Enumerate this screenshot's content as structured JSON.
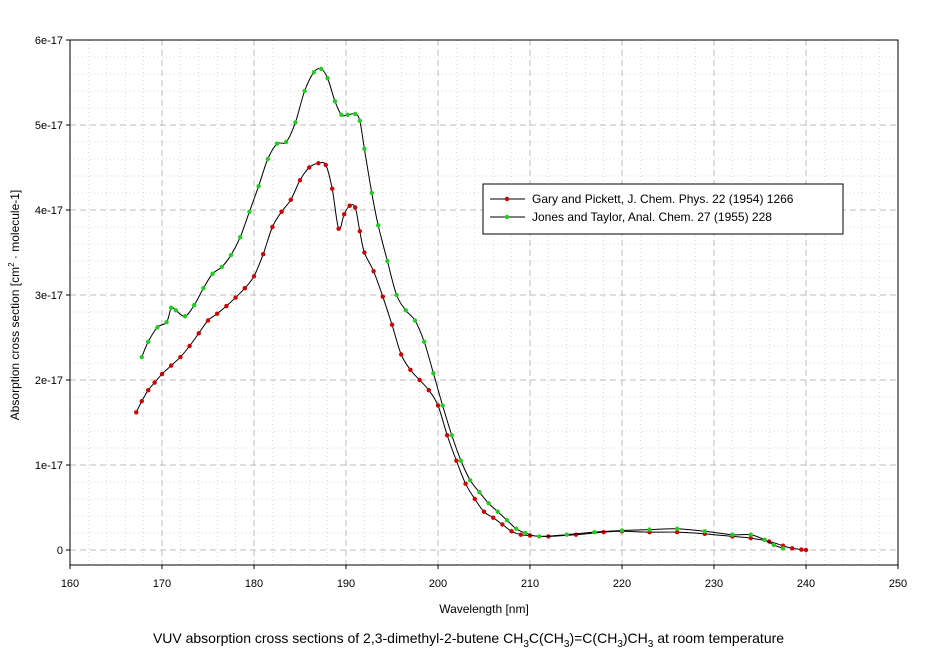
{
  "chart_data": {
    "type": "line",
    "xlabel": "Wavelength [nm]",
    "ylabel_parts": {
      "before": "Absorption cross section [cm",
      "sup": "2",
      "after": " · molecule-1]"
    },
    "xlim": [
      160,
      250
    ],
    "ylim": [
      0,
      6e-17
    ],
    "x_ticks": [
      {
        "value": 160,
        "label": "160"
      },
      {
        "value": 170,
        "label": "170"
      },
      {
        "value": 180,
        "label": "180"
      },
      {
        "value": 190,
        "label": "190"
      },
      {
        "value": 200,
        "label": "200"
      },
      {
        "value": 210,
        "label": "210"
      },
      {
        "value": 220,
        "label": "220"
      },
      {
        "value": 230,
        "label": "230"
      },
      {
        "value": 240,
        "label": "240"
      },
      {
        "value": 250,
        "label": "250"
      }
    ],
    "y_ticks": [
      {
        "value": 0,
        "label": "0"
      },
      {
        "value": 1e-17,
        "label": "1e-17"
      },
      {
        "value": 2e-17,
        "label": "2e-17"
      },
      {
        "value": 3e-17,
        "label": "3e-17"
      },
      {
        "value": 4e-17,
        "label": "4e-17"
      },
      {
        "value": 5e-17,
        "label": "5e-17"
      },
      {
        "value": 6e-17,
        "label": "6e-17"
      }
    ],
    "grid": true,
    "legend_position": "right",
    "series": [
      {
        "name": "Gary and Pickett, J. Chem. Phys. 22 (1954) 1266",
        "color": "#cc0000",
        "x": [
          167.2,
          167.8,
          168.5,
          169.2,
          170.0,
          171.0,
          172.0,
          173.0,
          174.0,
          175.0,
          176.0,
          177.0,
          178.0,
          179.0,
          180.0,
          181.0,
          182.0,
          183.0,
          184.0,
          185.0,
          186.0,
          187.0,
          187.8,
          188.5,
          189.2,
          189.8,
          190.4,
          191.0,
          191.5,
          192.0,
          193.0,
          194.0,
          195.0,
          196.0,
          197.0,
          198.0,
          199.0,
          200.0,
          201.0,
          202.0,
          203.0,
          204.0,
          205.0,
          206.0,
          207.0,
          208.0,
          209.0,
          210.0,
          212.0,
          215.0,
          218.0,
          220.0,
          223.0,
          226.0,
          229.0,
          232.0,
          234.0,
          236.0,
          237.5,
          238.5,
          239.5,
          240.0
        ],
        "y": [
          1.62e-17,
          1.75e-17,
          1.88e-17,
          1.97e-17,
          2.07e-17,
          2.17e-17,
          2.27e-17,
          2.4e-17,
          2.55e-17,
          2.7e-17,
          2.78e-17,
          2.87e-17,
          2.97e-17,
          3.08e-17,
          3.22e-17,
          3.48e-17,
          3.8e-17,
          3.98e-17,
          4.12e-17,
          4.35e-17,
          4.5e-17,
          4.55e-17,
          4.53e-17,
          4.25e-17,
          3.78e-17,
          3.95e-17,
          4.05e-17,
          4.03e-17,
          3.75e-17,
          3.5e-17,
          3.28e-17,
          2.98e-17,
          2.65e-17,
          2.3e-17,
          2.12e-17,
          2e-17,
          1.88e-17,
          1.7e-17,
          1.35e-17,
          1.05e-17,
          7.8e-18,
          6e-18,
          4.5e-18,
          3.8e-18,
          3e-18,
          2.2e-18,
          1.8e-18,
          1.7e-18,
          1.6e-18,
          1.8e-18,
          2.1e-18,
          2.2e-18,
          2.1e-18,
          2.1e-18,
          1.9e-18,
          1.6e-18,
          1.4e-18,
          1e-18,
          5e-19,
          2e-19,
          5e-20,
          0.0
        ]
      },
      {
        "name": "Jones and Taylor, Anal. Chem. 27 (1955) 228",
        "color": "#22cc22",
        "x": [
          167.8,
          168.5,
          169.5,
          170.5,
          171.0,
          171.5,
          172.5,
          173.5,
          174.5,
          175.5,
          176.5,
          177.5,
          178.5,
          179.5,
          180.5,
          181.5,
          182.5,
          183.5,
          184.5,
          185.5,
          186.5,
          187.3,
          188.0,
          188.8,
          189.5,
          190.2,
          191.0,
          191.5,
          192.0,
          192.8,
          193.5,
          194.5,
          195.5,
          196.5,
          197.5,
          198.5,
          199.5,
          200.5,
          201.5,
          202.5,
          203.5,
          204.5,
          205.5,
          206.5,
          207.5,
          208.5,
          209.5,
          211.0,
          214.0,
          217.0,
          220.0,
          223.0,
          226.0,
          229.0,
          232.0,
          234.0,
          235.5,
          236.5,
          237.5
        ],
        "y": [
          2.27e-17,
          2.45e-17,
          2.62e-17,
          2.68e-17,
          2.85e-17,
          2.82e-17,
          2.75e-17,
          2.88e-17,
          3.08e-17,
          3.25e-17,
          3.33e-17,
          3.47e-17,
          3.68e-17,
          3.98e-17,
          4.28e-17,
          4.6e-17,
          4.78e-17,
          4.8e-17,
          5.03e-17,
          5.4e-17,
          5.62e-17,
          5.66e-17,
          5.55e-17,
          5.28e-17,
          5.12e-17,
          5.12e-17,
          5.13e-17,
          5.05e-17,
          4.72e-17,
          4.2e-17,
          3.82e-17,
          3.4e-17,
          3e-17,
          2.82e-17,
          2.7e-17,
          2.45e-17,
          2.08e-17,
          1.7e-17,
          1.35e-17,
          1.05e-17,
          8.2e-18,
          6.8e-18,
          5.5e-18,
          4.5e-18,
          3.5e-18,
          2.5e-18,
          2e-18,
          1.6e-18,
          1.8e-18,
          2.1e-18,
          2.3e-18,
          2.4e-18,
          2.5e-18,
          2.2e-18,
          1.8e-18,
          1.8e-18,
          1.2e-18,
          6e-19,
          2e-19
        ]
      }
    ]
  },
  "caption": {
    "parts": [
      {
        "text": "VUV absorption cross sections of 2,3-dimethyl-2-butene CH"
      },
      {
        "sub": "3"
      },
      {
        "text": "C(CH"
      },
      {
        "sub": "3"
      },
      {
        "text": ")=C(CH"
      },
      {
        "sub": "3"
      },
      {
        "text": ")CH"
      },
      {
        "sub": "3"
      },
      {
        "text": " at room temperature"
      }
    ]
  }
}
